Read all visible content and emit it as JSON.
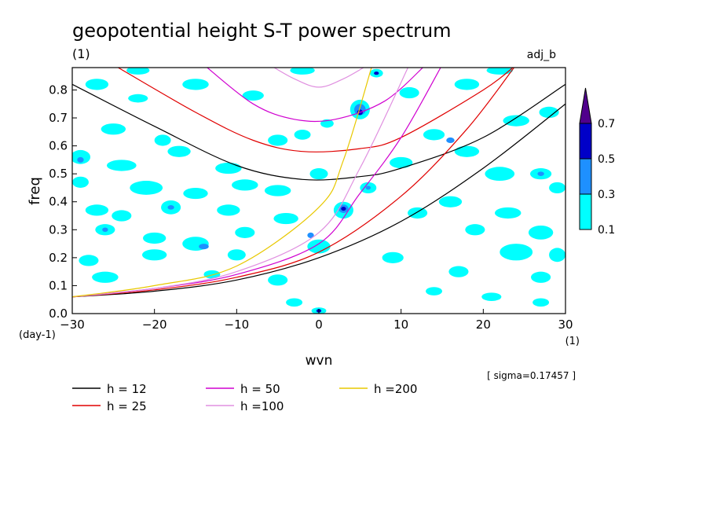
{
  "chart_data": {
    "type": "heatmap",
    "title": "geopotential height S-T power spectrum",
    "subtitle_left": "(1)",
    "subtitle_right": "adj_b",
    "xlabel": "wvn",
    "ylabel": "freq",
    "x_unit": "(1)",
    "y_unit": "(day-1)",
    "xlim": [
      -30,
      30
    ],
    "ylim": [
      0,
      0.88
    ],
    "x_ticks": [
      -30,
      -20,
      -10,
      0,
      10,
      20,
      30
    ],
    "y_ticks": [
      0.0,
      0.1,
      0.2,
      0.3,
      0.4,
      0.5,
      0.6,
      0.7,
      0.8
    ],
    "y_tick_labels": [
      "0.0",
      "0.1",
      "0.2",
      "0.3",
      "0.4",
      "0.5",
      "0.6",
      "0.7",
      "0.8"
    ],
    "sigma_label": "[ sigma=0.17457 ]",
    "colorbar": {
      "labels": [
        "0.1",
        "0.3",
        "0.5",
        "0.7"
      ],
      "colors": [
        "#00ffff",
        "#1e90ff",
        "#0000c8",
        "#50008c"
      ]
    },
    "curves": [
      {
        "name": "h = 12",
        "color": "#000000",
        "sym": {
          "x": [
            -30,
            -20,
            -10,
            -2,
            5,
            10,
            20,
            30
          ],
          "y": [
            0.82,
            0.67,
            0.53,
            0.48,
            0.49,
            0.52,
            0.63,
            0.82
          ]
        },
        "kelvin": {
          "x": [
            -30,
            -20,
            -10,
            0,
            10,
            20,
            30
          ],
          "y": [
            0.06,
            0.08,
            0.12,
            0.2,
            0.33,
            0.52,
            0.75
          ]
        }
      },
      {
        "name": "h = 25",
        "color": "#e00000",
        "sym": {
          "x": [
            -25,
            -15,
            -8,
            -2,
            5,
            10,
            20,
            24
          ],
          "y": [
            0.89,
            0.72,
            0.62,
            0.58,
            0.59,
            0.63,
            0.8,
            0.89
          ]
        },
        "kelvin": {
          "x": [
            -30,
            -20,
            -10,
            0,
            10,
            18,
            24
          ],
          "y": [
            0.06,
            0.085,
            0.13,
            0.22,
            0.42,
            0.66,
            0.89
          ]
        }
      },
      {
        "name": "h = 50",
        "color": "#d000d0",
        "sym": {
          "x": [
            -14,
            -8,
            -3,
            2,
            8,
            13
          ],
          "y": [
            0.89,
            0.75,
            0.695,
            0.695,
            0.76,
            0.89
          ]
        },
        "kelvin": {
          "x": [
            -30,
            -20,
            -10,
            0,
            5,
            10,
            15
          ],
          "y": [
            0.06,
            0.09,
            0.14,
            0.25,
            0.43,
            0.63,
            0.89
          ]
        }
      },
      {
        "name": "h =100",
        "color": "#e090e0",
        "sym": {
          "x": [
            -6,
            -3,
            0,
            3,
            6
          ],
          "y": [
            0.89,
            0.84,
            0.81,
            0.84,
            0.89
          ]
        },
        "kelvin": {
          "x": [
            -30,
            -20,
            -10,
            0,
            5,
            11
          ],
          "y": [
            0.06,
            0.09,
            0.15,
            0.29,
            0.52,
            0.89
          ]
        }
      },
      {
        "name": "h =200",
        "color": "#e8c800",
        "kelvin": {
          "x": [
            -30,
            -20,
            -10,
            0,
            3,
            6.5
          ],
          "y": [
            0.06,
            0.1,
            0.17,
            0.38,
            0.55,
            0.89
          ]
        }
      }
    ],
    "blobs": [
      {
        "x": -27,
        "y": 0.82,
        "rx": 1.4,
        "ry": 0.02,
        "level": 0
      },
      {
        "x": -22,
        "y": 0.77,
        "rx": 1.2,
        "ry": 0.015,
        "level": 0
      },
      {
        "x": -15,
        "y": 0.82,
        "rx": 1.6,
        "ry": 0.02,
        "level": 0
      },
      {
        "x": -8,
        "y": 0.78,
        "rx": 1.3,
        "ry": 0.018,
        "level": 0
      },
      {
        "x": -25,
        "y": 0.66,
        "rx": 1.5,
        "ry": 0.02,
        "level": 0
      },
      {
        "x": -19,
        "y": 0.62,
        "rx": 1.0,
        "ry": 0.02,
        "level": 0
      },
      {
        "x": -29,
        "y": 0.56,
        "rx": 1.2,
        "ry": 0.025,
        "level": 0
      },
      {
        "x": -29,
        "y": 0.55,
        "rx": 0.4,
        "ry": 0.01,
        "level": 1
      },
      {
        "x": -24,
        "y": 0.53,
        "rx": 1.8,
        "ry": 0.02,
        "level": 0
      },
      {
        "x": -17,
        "y": 0.58,
        "rx": 1.4,
        "ry": 0.02,
        "level": 0
      },
      {
        "x": -11,
        "y": 0.52,
        "rx": 1.6,
        "ry": 0.02,
        "level": 0
      },
      {
        "x": -9,
        "y": 0.46,
        "rx": 1.6,
        "ry": 0.02,
        "level": 0
      },
      {
        "x": -29,
        "y": 0.47,
        "rx": 1.0,
        "ry": 0.02,
        "level": 0
      },
      {
        "x": -21,
        "y": 0.45,
        "rx": 2.0,
        "ry": 0.025,
        "level": 0
      },
      {
        "x": -15,
        "y": 0.43,
        "rx": 1.5,
        "ry": 0.02,
        "level": 0
      },
      {
        "x": -5,
        "y": 0.44,
        "rx": 1.6,
        "ry": 0.02,
        "level": 0
      },
      {
        "x": 0,
        "y": 0.5,
        "rx": 1.1,
        "ry": 0.02,
        "level": 0
      },
      {
        "x": -27,
        "y": 0.37,
        "rx": 1.4,
        "ry": 0.02,
        "level": 0
      },
      {
        "x": -24,
        "y": 0.35,
        "rx": 1.2,
        "ry": 0.02,
        "level": 0
      },
      {
        "x": -18,
        "y": 0.38,
        "rx": 1.2,
        "ry": 0.025,
        "level": 0
      },
      {
        "x": -18,
        "y": 0.38,
        "rx": 0.4,
        "ry": 0.008,
        "level": 1
      },
      {
        "x": -11,
        "y": 0.37,
        "rx": 1.4,
        "ry": 0.02,
        "level": 0
      },
      {
        "x": -4,
        "y": 0.34,
        "rx": 1.5,
        "ry": 0.02,
        "level": 0
      },
      {
        "x": -26,
        "y": 0.3,
        "rx": 1.2,
        "ry": 0.02,
        "level": 0
      },
      {
        "x": -26,
        "y": 0.3,
        "rx": 0.35,
        "ry": 0.008,
        "level": 1
      },
      {
        "x": -20,
        "y": 0.27,
        "rx": 1.4,
        "ry": 0.02,
        "level": 0
      },
      {
        "x": -15,
        "y": 0.25,
        "rx": 1.6,
        "ry": 0.025,
        "level": 0
      },
      {
        "x": -14,
        "y": 0.24,
        "rx": 0.6,
        "ry": 0.01,
        "level": 1
      },
      {
        "x": -9,
        "y": 0.29,
        "rx": 1.2,
        "ry": 0.02,
        "level": 0
      },
      {
        "x": -28,
        "y": 0.19,
        "rx": 1.2,
        "ry": 0.02,
        "level": 0
      },
      {
        "x": -20,
        "y": 0.21,
        "rx": 1.5,
        "ry": 0.02,
        "level": 0
      },
      {
        "x": -10,
        "y": 0.21,
        "rx": 1.1,
        "ry": 0.02,
        "level": 0
      },
      {
        "x": -26,
        "y": 0.13,
        "rx": 1.6,
        "ry": 0.02,
        "level": 0
      },
      {
        "x": -13,
        "y": 0.14,
        "rx": 1.0,
        "ry": 0.015,
        "level": 0
      },
      {
        "x": -5,
        "y": 0.12,
        "rx": 1.2,
        "ry": 0.02,
        "level": 0
      },
      {
        "x": -3,
        "y": 0.04,
        "rx": 1.0,
        "ry": 0.015,
        "level": 0
      },
      {
        "x": 0,
        "y": 0.01,
        "rx": 0.9,
        "ry": 0.012,
        "level": 0
      },
      {
        "x": 0,
        "y": 0.01,
        "rx": 0.3,
        "ry": 0.006,
        "level": 2
      },
      {
        "x": 0,
        "y": 0.24,
        "rx": 1.4,
        "ry": 0.025,
        "level": 0
      },
      {
        "x": -1,
        "y": 0.28,
        "rx": 0.4,
        "ry": 0.01,
        "level": 1
      },
      {
        "x": 3,
        "y": 0.37,
        "rx": 1.2,
        "ry": 0.03,
        "level": 0
      },
      {
        "x": 3,
        "y": 0.375,
        "rx": 0.6,
        "ry": 0.015,
        "level": 1
      },
      {
        "x": 3,
        "y": 0.375,
        "rx": 0.3,
        "ry": 0.007,
        "level": 2
      },
      {
        "x": 5,
        "y": 0.73,
        "rx": 1.2,
        "ry": 0.035,
        "level": 0
      },
      {
        "x": 5,
        "y": 0.73,
        "rx": 0.7,
        "ry": 0.02,
        "level": 1
      },
      {
        "x": 5,
        "y": 0.72,
        "rx": 0.35,
        "ry": 0.01,
        "level": 2
      },
      {
        "x": 7,
        "y": 0.86,
        "rx": 0.8,
        "ry": 0.015,
        "level": 0
      },
      {
        "x": 7,
        "y": 0.86,
        "rx": 0.3,
        "ry": 0.006,
        "level": 2
      },
      {
        "x": 6,
        "y": 0.45,
        "rx": 1.0,
        "ry": 0.02,
        "level": 0
      },
      {
        "x": 6,
        "y": 0.45,
        "rx": 0.3,
        "ry": 0.007,
        "level": 1
      },
      {
        "x": 10,
        "y": 0.54,
        "rx": 1.4,
        "ry": 0.02,
        "level": 0
      },
      {
        "x": 12,
        "y": 0.36,
        "rx": 1.2,
        "ry": 0.02,
        "level": 0
      },
      {
        "x": 9,
        "y": 0.2,
        "rx": 1.3,
        "ry": 0.02,
        "level": 0
      },
      {
        "x": 14,
        "y": 0.64,
        "rx": 1.3,
        "ry": 0.02,
        "level": 0
      },
      {
        "x": 18,
        "y": 0.58,
        "rx": 1.5,
        "ry": 0.02,
        "level": 0
      },
      {
        "x": 16,
        "y": 0.62,
        "rx": 0.5,
        "ry": 0.01,
        "level": 1
      },
      {
        "x": 24,
        "y": 0.69,
        "rx": 1.6,
        "ry": 0.02,
        "level": 0
      },
      {
        "x": 28,
        "y": 0.72,
        "rx": 1.2,
        "ry": 0.02,
        "level": 0
      },
      {
        "x": 22,
        "y": 0.5,
        "rx": 1.8,
        "ry": 0.025,
        "level": 0
      },
      {
        "x": 27,
        "y": 0.5,
        "rx": 1.3,
        "ry": 0.02,
        "level": 0
      },
      {
        "x": 27,
        "y": 0.5,
        "rx": 0.4,
        "ry": 0.008,
        "level": 1
      },
      {
        "x": 29,
        "y": 0.45,
        "rx": 1.0,
        "ry": 0.02,
        "level": 0
      },
      {
        "x": 16,
        "y": 0.4,
        "rx": 1.4,
        "ry": 0.02,
        "level": 0
      },
      {
        "x": 23,
        "y": 0.36,
        "rx": 1.6,
        "ry": 0.02,
        "level": 0
      },
      {
        "x": 19,
        "y": 0.3,
        "rx": 1.2,
        "ry": 0.02,
        "level": 0
      },
      {
        "x": 27,
        "y": 0.29,
        "rx": 1.5,
        "ry": 0.025,
        "level": 0
      },
      {
        "x": 24,
        "y": 0.22,
        "rx": 2.0,
        "ry": 0.03,
        "level": 0
      },
      {
        "x": 29,
        "y": 0.21,
        "rx": 1.0,
        "ry": 0.025,
        "level": 0
      },
      {
        "x": 17,
        "y": 0.15,
        "rx": 1.2,
        "ry": 0.02,
        "level": 0
      },
      {
        "x": 27,
        "y": 0.13,
        "rx": 1.2,
        "ry": 0.02,
        "level": 0
      },
      {
        "x": 14,
        "y": 0.08,
        "rx": 1.0,
        "ry": 0.015,
        "level": 0
      },
      {
        "x": 21,
        "y": 0.06,
        "rx": 1.2,
        "ry": 0.015,
        "level": 0
      },
      {
        "x": 27,
        "y": 0.04,
        "rx": 1.0,
        "ry": 0.015,
        "level": 0
      },
      {
        "x": 18,
        "y": 0.82,
        "rx": 1.5,
        "ry": 0.02,
        "level": 0
      },
      {
        "x": 11,
        "y": 0.79,
        "rx": 1.2,
        "ry": 0.02,
        "level": 0
      },
      {
        "x": -2,
        "y": 0.64,
        "rx": 1.0,
        "ry": 0.018,
        "level": 0
      },
      {
        "x": -5,
        "y": 0.62,
        "rx": 1.2,
        "ry": 0.02,
        "level": 0
      },
      {
        "x": 1,
        "y": 0.68,
        "rx": 0.8,
        "ry": 0.015,
        "level": 0
      },
      {
        "x": -22,
        "y": 0.87,
        "rx": 1.4,
        "ry": 0.015,
        "level": 0
      },
      {
        "x": -2,
        "y": 0.87,
        "rx": 1.5,
        "ry": 0.015,
        "level": 0
      },
      {
        "x": 22,
        "y": 0.87,
        "rx": 1.6,
        "ry": 0.015,
        "level": 0
      }
    ]
  }
}
